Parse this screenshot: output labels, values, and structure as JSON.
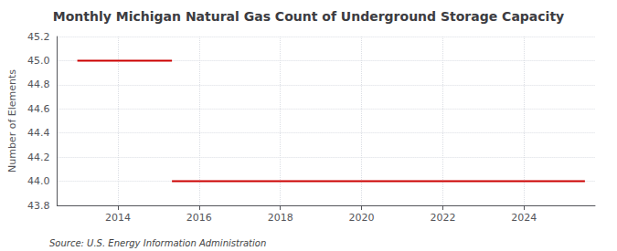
{
  "chart_data": {
    "type": "line",
    "title": "Monthly Michigan Natural Gas Count of Underground Storage Capacity",
    "ylabel": "Number of Elements",
    "annotations": [
      "Source: U.S. Energy Information Administration"
    ],
    "color": "#cc0000",
    "series": [
      {
        "x": [
          2013.0,
          2015.33
        ],
        "values": [
          45.0,
          45.0
        ]
      },
      {
        "x": [
          2015.33,
          2025.5
        ],
        "values": [
          44.0,
          44.0
        ]
      }
    ],
    "xlim": [
      2012.5,
      2025.75
    ],
    "xticks": [
      2014,
      2016,
      2018,
      2020,
      2022,
      2024
    ],
    "ylim": [
      43.8,
      45.2
    ],
    "yticks": [
      43.8,
      {
        "value": 44,
        "label": "44.0"
      },
      44.2,
      44.4,
      44.6,
      44.8,
      {
        "value": 45,
        "label": "45.0"
      },
      45.2
    ],
    "grid": true
  }
}
